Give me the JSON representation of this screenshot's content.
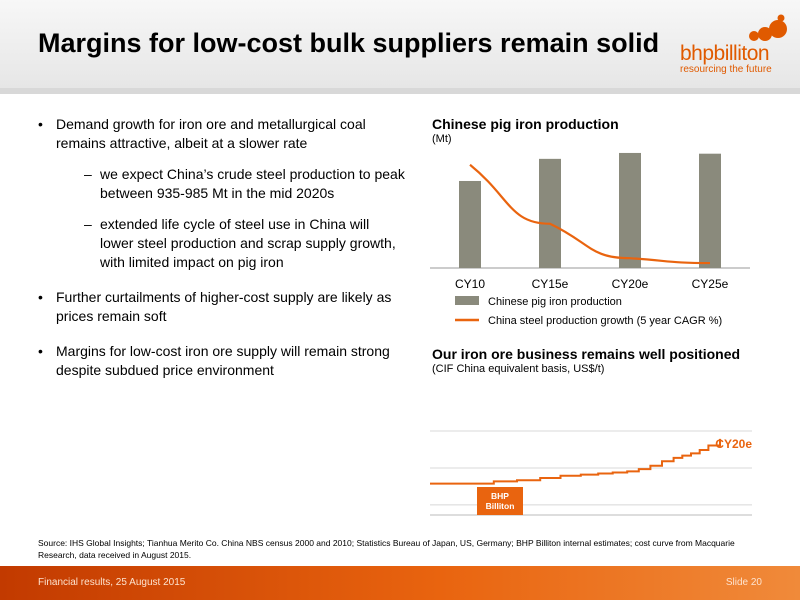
{
  "slide": {
    "title": "Margins for low-cost bulk suppliers remain solid"
  },
  "logo": {
    "wordmark": "bhpbilliton",
    "tagline": "resourcing the future"
  },
  "bullets": [
    {
      "text": "Demand growth for iron ore and metallurgical coal remains attractive, albeit at a slower rate",
      "subs": [
        "we expect China’s crude steel production to peak between 935-985 Mt in the mid 2020s",
        "extended life cycle of steel use in China will lower steel production and scrap supply growth, with limited impact on pig iron"
      ]
    },
    {
      "text": "Further curtailments of higher-cost supply are likely as prices remain soft",
      "subs": []
    },
    {
      "text": "Margins for low-cost iron ore supply will remain strong despite subdued price environment",
      "subs": []
    }
  ],
  "chart_data": [
    {
      "type": "bar",
      "title": "Chinese pig iron production",
      "subtitle": "(Mt)",
      "categories": [
        "CY10",
        "CY15e",
        "CY20e",
        "CY25e"
      ],
      "series": [
        {
          "name": "Chinese pig iron production",
          "type": "bar",
          "color": "#8a8a7c",
          "values": [
            590,
            740,
            780,
            775
          ]
        },
        {
          "name": "China steel production growth (5 year CAGR %)",
          "type": "line",
          "color": "#e9640f",
          "values": [
            10.5,
            4.5,
            1.0,
            0.5
          ]
        }
      ],
      "ylim_bars": [
        0,
        800
      ],
      "ylim_line": [
        0,
        12
      ],
      "grid": false,
      "legend": "bottom"
    },
    {
      "type": "line",
      "title": "Our iron ore business remains well positioned",
      "subtitle": "(CIF China equivalent basis, US$/t)",
      "series": [
        {
          "name": "cost curve",
          "color": "#e9640f",
          "x": [
            0,
            0.07,
            0.14,
            0.22,
            0.3,
            0.38,
            0.45,
            0.52,
            0.58,
            0.63,
            0.68,
            0.72,
            0.76,
            0.8,
            0.84,
            0.87,
            0.9,
            0.93,
            0.96,
            1.0
          ],
          "y": [
            28,
            28,
            28,
            30,
            31,
            33,
            35,
            36,
            37,
            38,
            39,
            41,
            44,
            48,
            51,
            53,
            55,
            58,
            62,
            68
          ]
        }
      ],
      "ylim": [
        0,
        100
      ],
      "grid": true,
      "annotations": [
        {
          "text": "CY20e",
          "at": "curve end"
        },
        {
          "text": "BHP Billiton",
          "at": "low-cost segment"
        }
      ],
      "highlight_label": "BHP\nBilliton",
      "end_label": "CY20e"
    }
  ],
  "source": "Source:   IHS Global Insights; Tianhua Merito Co. China NBS census 2000 and 2010; Statistics Bureau of Japan, US, Germany; BHP Billiton internal estimates; cost curve from Macquarie Research, data received in August 2015.",
  "footer": {
    "left": "Financial results, 25 August 2015",
    "right": "Slide 20"
  },
  "colors": {
    "accent": "#e9640f",
    "bar": "#8a8a7c"
  }
}
